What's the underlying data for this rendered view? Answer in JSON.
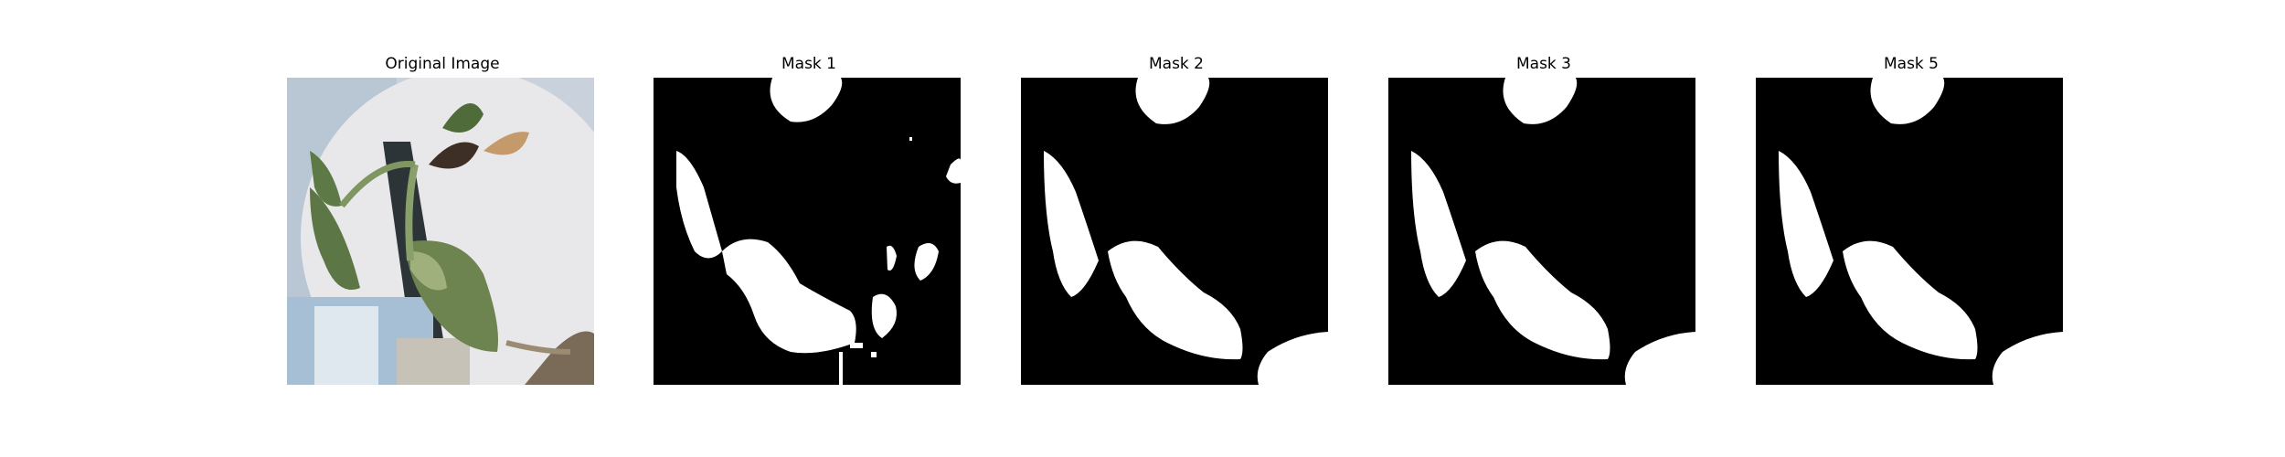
{
  "figure": {
    "panels": [
      {
        "title": "Original Image",
        "kind": "photo-plant"
      },
      {
        "title": "Mask 1",
        "kind": "mask-noisy"
      },
      {
        "title": "Mask 2",
        "kind": "mask-clean"
      },
      {
        "title": "Mask 3",
        "kind": "mask-clean"
      },
      {
        "title": "Mask 5",
        "kind": "mask-clean"
      }
    ]
  }
}
